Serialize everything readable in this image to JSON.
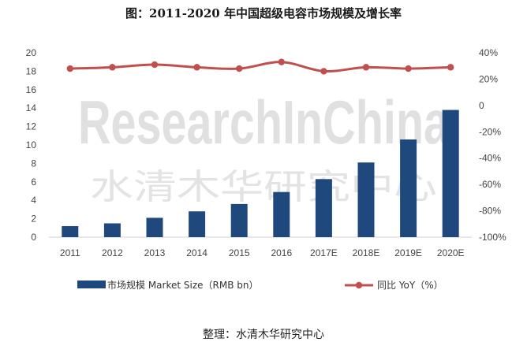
{
  "title": "图：2011-2020 年中国超级电容市场规模及增长率",
  "caption": "整理：水清木华研究中心",
  "watermark": {
    "latin": "ResearchInChina",
    "chinese": "水清木华研究中心"
  },
  "chart_data": {
    "type": "bar",
    "categories": [
      "2011",
      "2012",
      "2013",
      "2014",
      "2015",
      "2016",
      "2017E",
      "2018E",
      "2019E",
      "2020E"
    ],
    "series": [
      {
        "name": "市场规模 Market Size（RMB bn）",
        "type": "bar",
        "axis": "left",
        "color": "#1f497d",
        "values": [
          1.2,
          1.5,
          2.1,
          2.8,
          3.6,
          4.9,
          6.3,
          8.1,
          10.6,
          13.8
        ]
      },
      {
        "name": "同比 YoY（%）",
        "type": "line",
        "axis": "right",
        "color": "#c0504d",
        "values": [
          28,
          29,
          31,
          29,
          28,
          33,
          26,
          29,
          28,
          29
        ]
      }
    ],
    "y_left": {
      "min": 0,
      "max": 20,
      "step": 2,
      "ticks": [
        "0",
        "2",
        "4",
        "6",
        "8",
        "10",
        "12",
        "14",
        "16",
        "18",
        "20"
      ]
    },
    "y_right": {
      "min": -100,
      "max": 40,
      "step": 20,
      "ticks": [
        "-100%",
        "-80%",
        "-60%",
        "-40%",
        "-20%",
        "0",
        "20%",
        "40%"
      ]
    },
    "grid": false,
    "legend": "bottom"
  }
}
